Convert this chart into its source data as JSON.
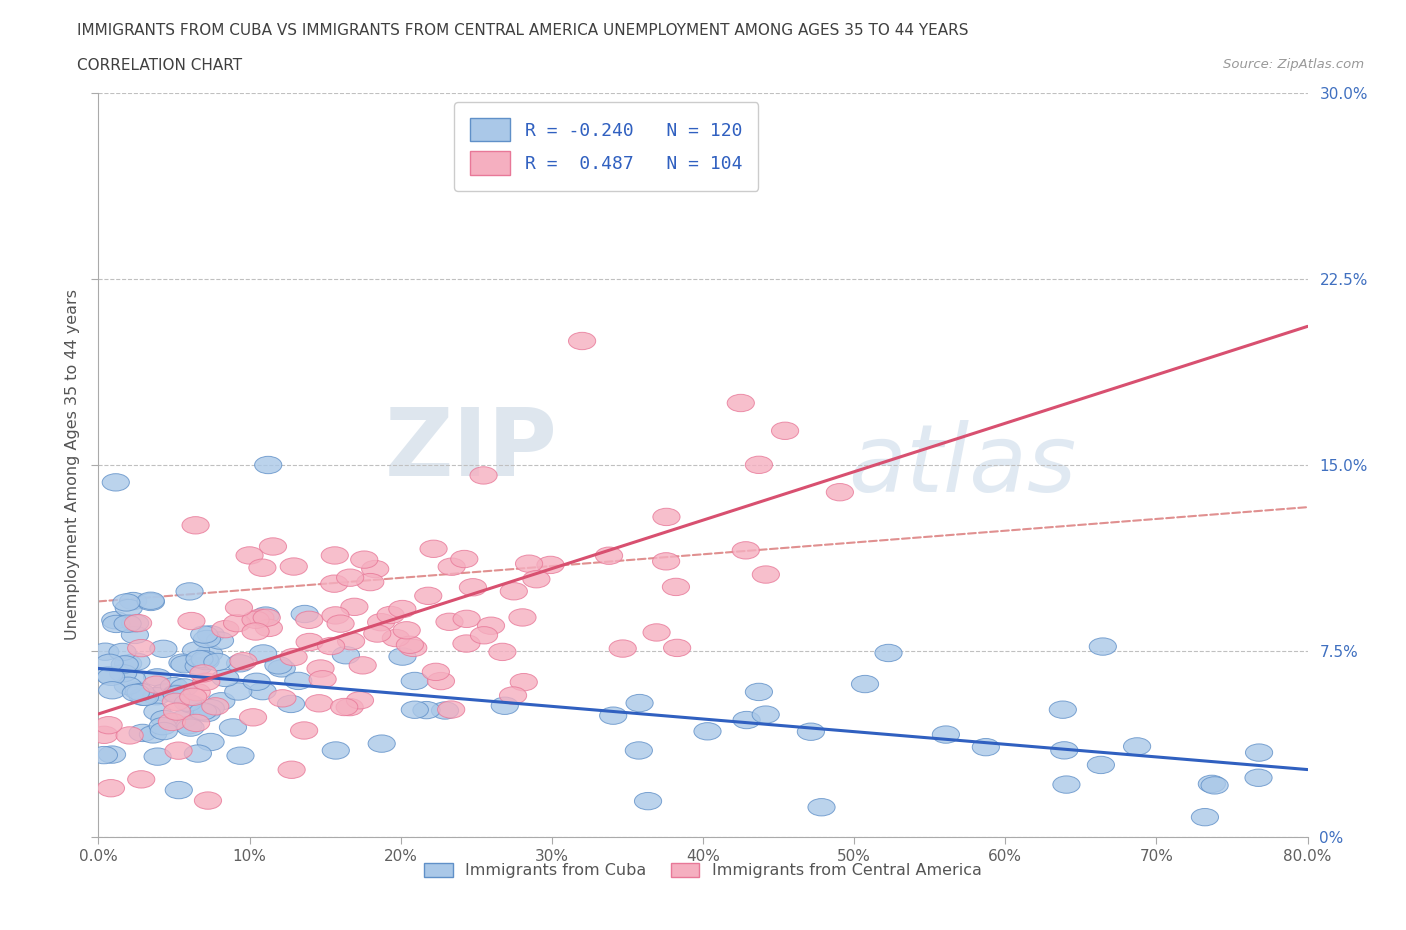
{
  "title_line1": "IMMIGRANTS FROM CUBA VS IMMIGRANTS FROM CENTRAL AMERICA UNEMPLOYMENT AMONG AGES 35 TO 44 YEARS",
  "title_line2": "CORRELATION CHART",
  "source_text": "Source: ZipAtlas.com",
  "ylabel": "Unemployment Among Ages 35 to 44 years",
  "xlim": [
    0.0,
    0.8
  ],
  "ylim": [
    0.0,
    0.3
  ],
  "xticks": [
    0.0,
    0.1,
    0.2,
    0.3,
    0.4,
    0.5,
    0.6,
    0.7,
    0.8
  ],
  "yticks": [
    0.0,
    0.075,
    0.15,
    0.225,
    0.3
  ],
  "ytick_labels": [
    "0%",
    "7.5%",
    "15.0%",
    "22.5%",
    "30.0%"
  ],
  "xtick_labels": [
    "0.0%",
    "10%",
    "20%",
    "30%",
    "40%",
    "50%",
    "60%",
    "70%",
    "80.0%"
  ],
  "cuba_color": "#aac8e8",
  "central_color": "#f5afc0",
  "cuba_edge_color": "#6090c8",
  "central_edge_color": "#e87898",
  "cuba_line_color": "#3060c0",
  "central_line_color": "#d85070",
  "dashed_line_color": "#e09090",
  "R_cuba": -0.24,
  "N_cuba": 120,
  "R_central": 0.487,
  "N_central": 104,
  "watermark_part1": "ZIP",
  "watermark_part2": "atlas",
  "background_color": "#ffffff",
  "grid_color": "#c0c0c0",
  "title_color": "#404040",
  "ytick_color": "#4070c0",
  "xtick_color": "#606060",
  "legend_R_color": "#3060c0",
  "legend_label_color": "#555555"
}
